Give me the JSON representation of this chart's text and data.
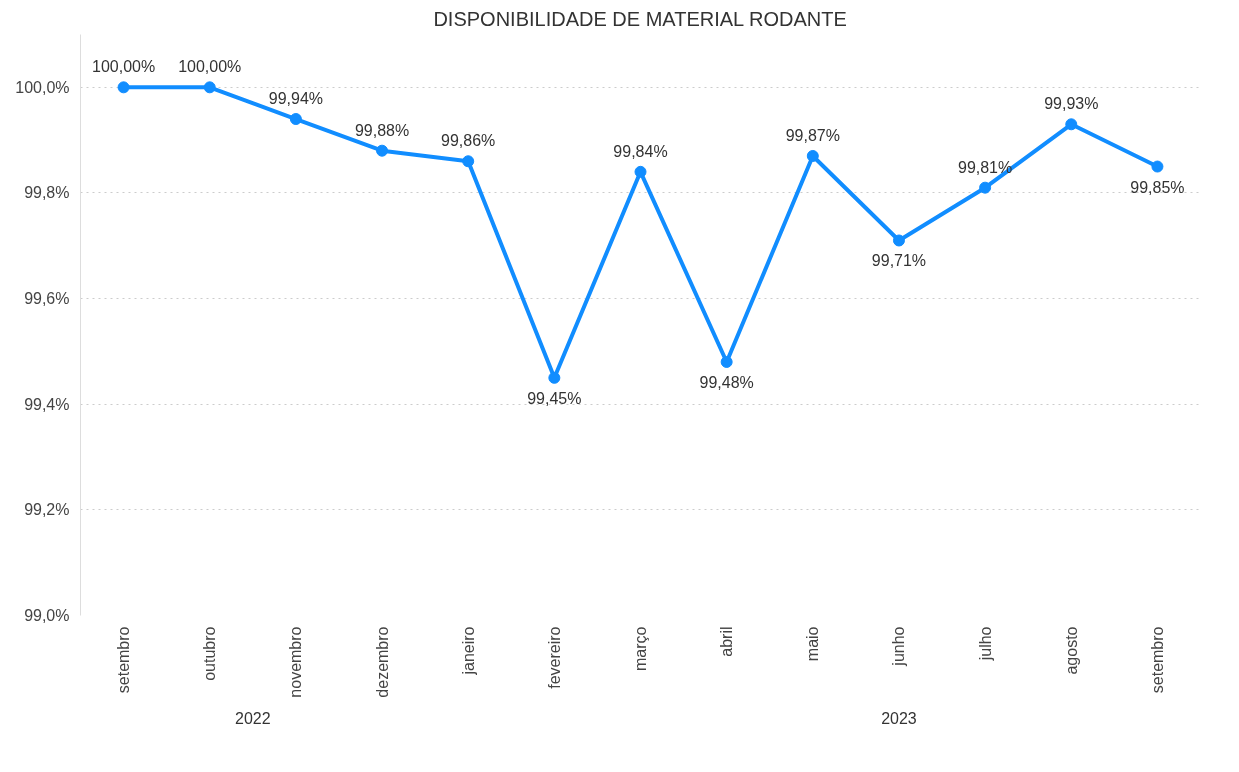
{
  "chart_data": {
    "type": "line",
    "title": "DISPONIBILIDADE DE MATERIAL RODANTE",
    "categories": [
      "setembro",
      "outubro",
      "novembro",
      "dezembro",
      "janeiro",
      "fevereiro",
      "março",
      "abril",
      "maio",
      "junho",
      "julho",
      "agosto",
      "setembro"
    ],
    "series": [
      {
        "color": "#118dff",
        "values": [
          100.0,
          100.0,
          99.94,
          99.88,
          99.86,
          99.45,
          99.84,
          99.48,
          99.87,
          99.71,
          99.81,
          99.93,
          99.85
        ],
        "value_labels": [
          "100,00%",
          "100,00%",
          "99,94%",
          "99,88%",
          "99,86%",
          "99,45%",
          "99,84%",
          "99,48%",
          "99,87%",
          "99,71%",
          "99,81%",
          "99,93%",
          "99,85%"
        ]
      }
    ],
    "ylim": [
      99.0,
      100.1
    ],
    "yticks": [
      {
        "value": 99.0,
        "label": "99,0%"
      },
      {
        "value": 99.2,
        "label": "99,2%"
      },
      {
        "value": 99.4,
        "label": "99,4%"
      },
      {
        "value": 99.6,
        "label": "99,6%"
      },
      {
        "value": 99.8,
        "label": "99,8%"
      },
      {
        "value": 100.0,
        "label": "100,0%"
      }
    ],
    "grid": "y",
    "marker": "circle",
    "line_style": "solid",
    "annotations": [
      "2022",
      "2023"
    ]
  }
}
